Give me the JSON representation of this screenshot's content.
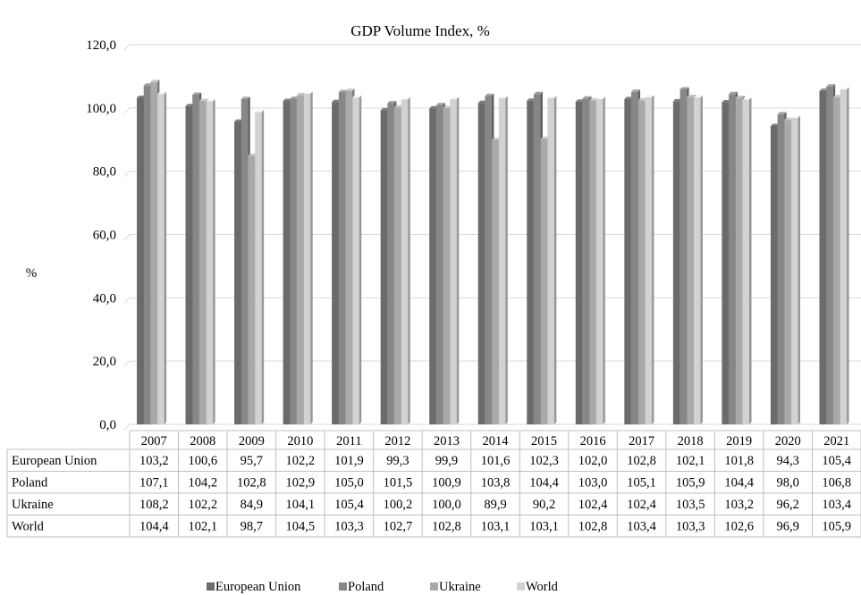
{
  "chart_data": {
    "type": "bar",
    "title": "GDP Volume Index, %",
    "ylabel": "%",
    "ylim": [
      0,
      120
    ],
    "yticks": [
      "0,0",
      "20,0",
      "40,0",
      "60,0",
      "80,0",
      "100,0",
      "120,0"
    ],
    "grid": true,
    "legend_position": "bottom",
    "data_table": true,
    "categories": [
      "2007",
      "2008",
      "2009",
      "2010",
      "2011",
      "2012",
      "2013",
      "2014",
      "2015",
      "2016",
      "2017",
      "2018",
      "2019",
      "2020",
      "2021"
    ],
    "series": [
      {
        "name": "European Union",
        "color": "#6b6b6b",
        "labels": [
          "103,2",
          "100,6",
          "95,7",
          "102,2",
          "101,9",
          "99,3",
          "99,9",
          "101,6",
          "102,3",
          "102,0",
          "102,8",
          "102,1",
          "101,8",
          "94,3",
          "105,4"
        ],
        "values": [
          103.2,
          100.6,
          95.7,
          102.2,
          101.9,
          99.3,
          99.9,
          101.6,
          102.3,
          102.0,
          102.8,
          102.1,
          101.8,
          94.3,
          105.4
        ]
      },
      {
        "name": "Poland",
        "color": "#878787",
        "labels": [
          "107,1",
          "104,2",
          "102,8",
          "102,9",
          "105,0",
          "101,5",
          "100,9",
          "103,8",
          "104,4",
          "103,0",
          "105,1",
          "105,9",
          "104,4",
          "98,0",
          "106,8"
        ],
        "values": [
          107.1,
          104.2,
          102.8,
          102.9,
          105.0,
          101.5,
          100.9,
          103.8,
          104.4,
          103.0,
          105.1,
          105.9,
          104.4,
          98.0,
          106.8
        ]
      },
      {
        "name": "Ukraine",
        "color": "#a9a9a9",
        "labels": [
          "108,2",
          "102,2",
          "84,9",
          "104,1",
          "105,4",
          "100,2",
          "100,0",
          "89,9",
          "90,2",
          "102,4",
          "102,4",
          "103,5",
          "103,2",
          "96,2",
          "103,4"
        ],
        "values": [
          108.2,
          102.2,
          84.9,
          104.1,
          105.4,
          100.2,
          100.0,
          89.9,
          90.2,
          102.4,
          102.4,
          103.5,
          103.2,
          96.2,
          103.4
        ]
      },
      {
        "name": "World",
        "color": "#d2d2d2",
        "labels": [
          "104,4",
          "102,1",
          "98,7",
          "104,5",
          "103,3",
          "102,7",
          "102,8",
          "103,1",
          "103,1",
          "102,8",
          "103,4",
          "103,3",
          "102,6",
          "96,9",
          "105,9"
        ],
        "values": [
          104.4,
          102.1,
          98.7,
          104.5,
          103.3,
          102.7,
          102.8,
          103.1,
          103.1,
          102.8,
          103.4,
          103.3,
          102.6,
          96.9,
          105.9
        ]
      }
    ]
  }
}
